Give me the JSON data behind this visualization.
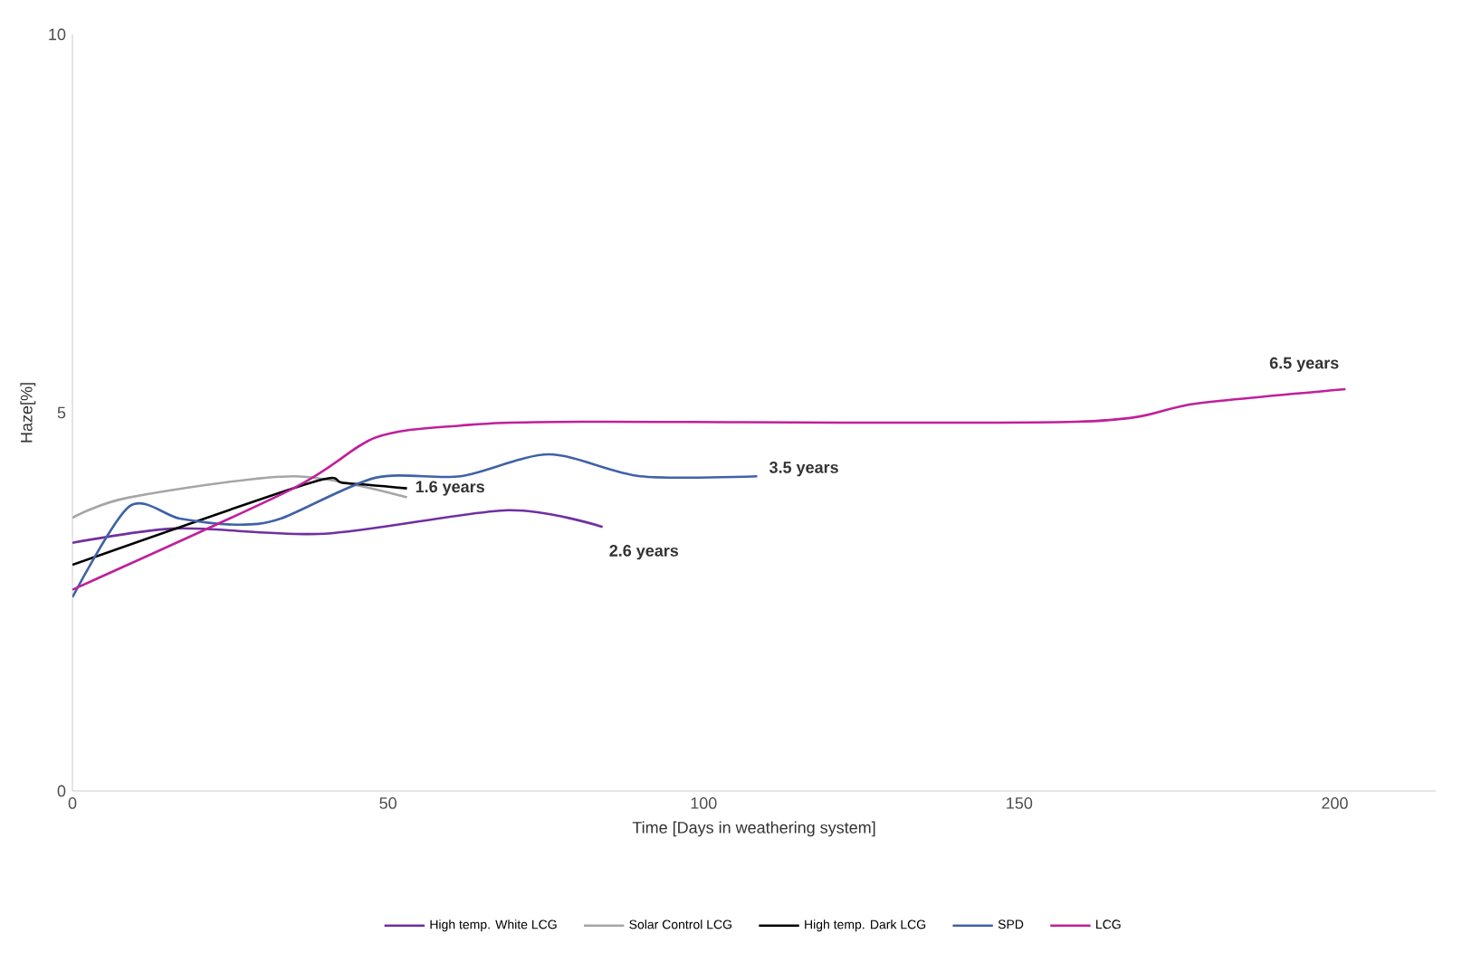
{
  "chart_data": {
    "type": "line",
    "xlabel": "Time [Days in weathering system]",
    "ylabel": "Haze[%]",
    "xlim": [
      0,
      216
    ],
    "ylim": [
      0,
      10
    ],
    "xticks": [
      0,
      50,
      100,
      150,
      200
    ],
    "yticks": [
      0,
      5,
      10
    ],
    "grid": false,
    "legend": "bottom",
    "marker": "none",
    "line_style": "solid",
    "series": [
      {
        "name": "High temp. White LCG",
        "color": "#7030a0",
        "x": [
          0,
          16.6,
          40,
          69,
          84
        ],
        "values": [
          3.28,
          3.47,
          3.4,
          3.71,
          3.49
        ]
      },
      {
        "name": "Solar Control LCG",
        "color": "#a6a6a6",
        "x": [
          0,
          9,
          35,
          53
        ],
        "values": [
          3.61,
          3.88,
          4.16,
          3.88
        ]
      },
      {
        "name": "High temp. Dark LCG",
        "color": "#000000",
        "x": [
          0,
          37.6,
          43,
          53
        ],
        "values": [
          2.99,
          4.07,
          4.07,
          4.0
        ]
      },
      {
        "name": "SPD",
        "color": "#4062a8",
        "x": [
          0,
          9,
          17,
          26,
          33,
          48,
          61.5,
          75.5,
          90,
          108.5
        ],
        "values": [
          2.56,
          3.76,
          3.6,
          3.52,
          3.6,
          4.14,
          4.16,
          4.45,
          4.16,
          4.16
        ]
      },
      {
        "name": "LCG",
        "color": "#c0209a",
        "x": [
          0,
          35,
          48,
          61.5,
          80.6,
          159,
          178,
          201.7
        ],
        "values": [
          2.66,
          4.0,
          4.67,
          4.83,
          4.88,
          4.88,
          5.12,
          5.31
        ]
      }
    ],
    "annotations": [
      {
        "text": "1.6 years",
        "x": 53,
        "y": 4.0
      },
      {
        "text": "2.6 years",
        "x": 84,
        "y": 3.49
      },
      {
        "text": "3.5 years",
        "x": 108.5,
        "y": 4.16
      },
      {
        "text": "6.5 years",
        "x": 201.7,
        "y": 5.31
      }
    ]
  }
}
